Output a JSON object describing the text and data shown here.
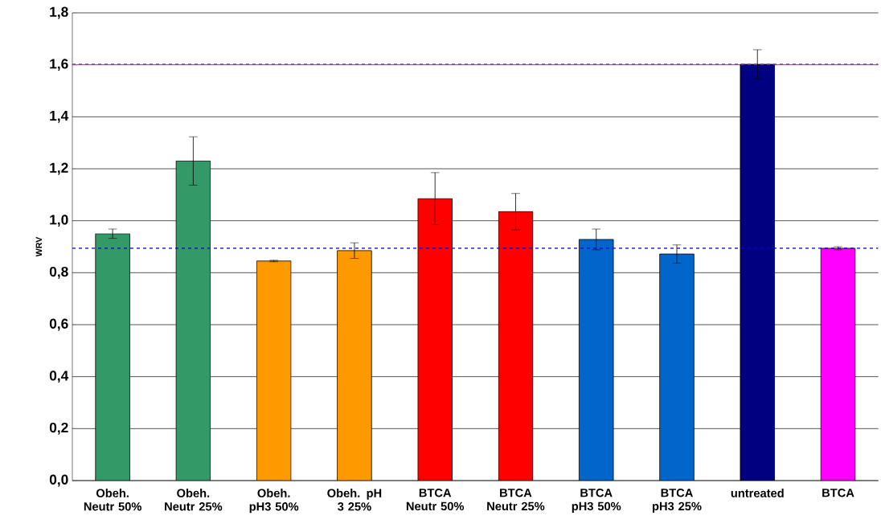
{
  "chart_data": {
    "type": "bar",
    "ylabel": "WRV",
    "categories": [
      "Obeh. Neutr 50%",
      "Obeh. Neutr 25%",
      "Obeh. pH3 50%",
      "Obeh. pH 3 25%",
      "BTCA Neutr 50%",
      "BTCA Neutr 25%",
      "BTCA pH3 50%",
      "BTCA pH3 25%",
      "untreated",
      "BTCA"
    ],
    "values": [
      0.95,
      1.23,
      0.845,
      0.885,
      1.085,
      1.035,
      0.928,
      0.872,
      1.602,
      0.894
    ],
    "errors": [
      0.018,
      0.093,
      0.003,
      0.03,
      0.1,
      0.07,
      0.04,
      0.035,
      0.056,
      0.006
    ],
    "colors": [
      "#339966",
      "#339966",
      "#ff9900",
      "#ff9900",
      "#ff0000",
      "#ff0000",
      "#0066cc",
      "#0066cc",
      "#000080",
      "#ff00ff"
    ],
    "ylim": [
      0,
      1.8
    ],
    "yticks": [
      {
        "value": 0,
        "label": "0,0"
      },
      {
        "value": 0.2,
        "label": "0,2"
      },
      {
        "value": 0.4,
        "label": "0,4"
      },
      {
        "value": 0.6,
        "label": "0,6"
      },
      {
        "value": 0.8,
        "label": "0,8"
      },
      {
        "value": 1.0,
        "label": "1,0"
      },
      {
        "value": 1.2,
        "label": "1,2"
      },
      {
        "value": 1.4,
        "label": "1,4"
      },
      {
        "value": 1.6,
        "label": "1,6"
      },
      {
        "value": 1.8,
        "label": "1,8"
      }
    ],
    "grid": "y",
    "ref_lines": [
      {
        "axis": "y",
        "value": 1.602,
        "color": "#993399",
        "line_style": "dashed"
      },
      {
        "axis": "y",
        "value": 0.894,
        "color": "#0000cc",
        "line_style": "dashed"
      }
    ]
  }
}
